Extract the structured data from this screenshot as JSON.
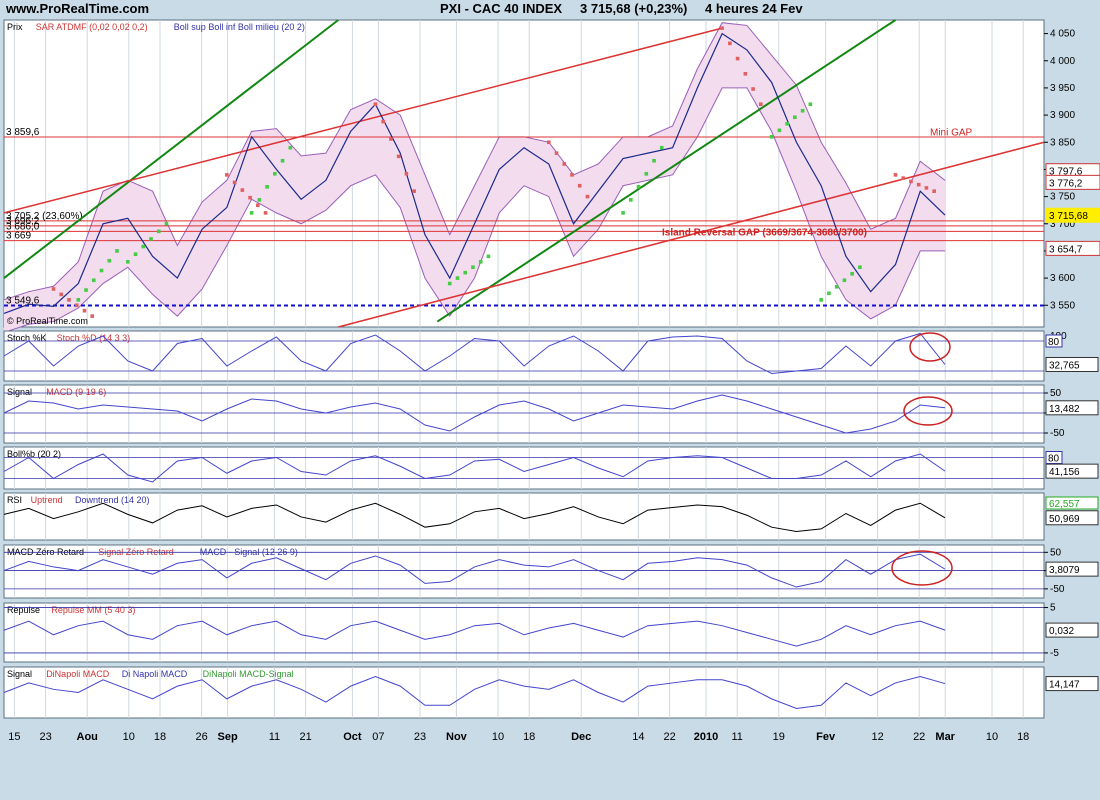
{
  "header": {
    "site": "www.ProRealTime.com",
    "instrument": "PXI - CAC 40 INDEX",
    "last": "3 715,68 (+0,23%)",
    "period": "4 heures  24 Fev"
  },
  "colors": {
    "background": "#c8dbe6",
    "panel": "#ffffff",
    "bollinger_fill": "#f2dcee",
    "bollinger_line": "#9a5fb8",
    "sar_red": "#e06060",
    "sar_green": "#44cc44",
    "trend_red": "#dd3333",
    "trend_green": "#118811",
    "support_blue": "#1010cc"
  },
  "chart_data": [
    {
      "type": "line",
      "id": "price",
      "legend": [
        "Prix",
        "SAR ATDMF (0,02 0,02 0,2)",
        "Boll sup Boll inf Boll milieu (20 2)"
      ],
      "watermark": "© ProRealTime.com",
      "ylim": [
        3510,
        4075
      ],
      "yticks": [
        3550,
        3600,
        3650,
        3700,
        3750,
        3800,
        3850,
        3900,
        3950,
        4000,
        4050
      ],
      "ytick_labels": [
        "3 550",
        "3 600",
        "3 650",
        "3 700",
        "3 750",
        "3 800",
        "3 850",
        "3 900",
        "3 950",
        "4 000",
        "4 050"
      ],
      "left_levels": [
        {
          "value": 3859.6,
          "label": "3 859,6"
        },
        {
          "value": 3549.6,
          "label": "3 549,6"
        },
        {
          "value": 3705.2,
          "label": "3 705,2 (23,60%)"
        },
        {
          "value": 3696.2,
          "label": "3 696,2"
        },
        {
          "value": 3686.0,
          "label": "3 686,0"
        },
        {
          "value": 3669.0,
          "label": "3 669"
        }
      ],
      "right_badges": [
        {
          "value": 3797.6,
          "label": "3 797,6",
          "color": "#cc3333"
        },
        {
          "value": 3776.2,
          "label": "3 776,2",
          "color": "#cc3333"
        },
        {
          "value": 3715.68,
          "label": "3 715,68",
          "color": "#ffee00"
        },
        {
          "value": 3654.7,
          "label": "3 654,7",
          "color": "#cc3333"
        }
      ],
      "annotations": [
        "Mini GAP",
        "Island Reversal GAP (3669/3674-3686/3700)"
      ],
      "x": [
        0,
        8,
        16,
        24,
        32,
        40,
        48,
        56,
        64,
        72,
        80,
        88,
        96,
        104,
        112,
        120,
        128,
        136,
        144,
        152,
        160,
        168,
        176,
        184,
        192,
        200,
        208,
        216,
        224,
        232,
        240,
        248,
        256,
        264,
        272,
        280,
        288,
        296,
        304
      ],
      "close": [
        3535,
        3552,
        3548,
        3590,
        3700,
        3710,
        3640,
        3600,
        3690,
        3730,
        3860,
        3800,
        3745,
        3780,
        3870,
        3920,
        3830,
        3680,
        3600,
        3700,
        3800,
        3840,
        3810,
        3700,
        3760,
        3820,
        3830,
        3840,
        3950,
        4050,
        4020,
        3960,
        3850,
        3770,
        3640,
        3575,
        3625,
        3760,
        3716
      ],
      "series": [
        {
          "name": "Boll sup",
          "values": [
            3560,
            3575,
            3585,
            3630,
            3760,
            3780,
            3760,
            3660,
            3740,
            3780,
            3870,
            3875,
            3825,
            3830,
            3910,
            3930,
            3900,
            3790,
            3680,
            3770,
            3860,
            3860,
            3850,
            3790,
            3810,
            3860,
            3860,
            3880,
            3985,
            4070,
            4065,
            4010,
            3955,
            3850,
            3775,
            3690,
            3710,
            3815,
            3780
          ]
        },
        {
          "name": "Boll inf",
          "values": [
            3500,
            3515,
            3520,
            3545,
            3590,
            3620,
            3570,
            3530,
            3580,
            3660,
            3745,
            3720,
            3700,
            3725,
            3770,
            3790,
            3730,
            3600,
            3530,
            3600,
            3720,
            3770,
            3750,
            3640,
            3690,
            3770,
            3780,
            3790,
            3860,
            3950,
            3950,
            3870,
            3760,
            3640,
            3560,
            3525,
            3550,
            3650,
            3650
          ]
        }
      ],
      "sar": {
        "red_segments": [
          [
            16,
            3580,
            3530
          ],
          [
            72,
            3790,
            3720
          ],
          [
            120,
            3920,
            3760
          ],
          [
            176,
            3850,
            3750
          ],
          [
            232,
            4060,
            3920
          ],
          [
            288,
            3790,
            3760
          ]
        ],
        "green_segments": [
          [
            24,
            3560,
            3650
          ],
          [
            40,
            3630,
            3700
          ],
          [
            80,
            3720,
            3840
          ],
          [
            144,
            3590,
            3640
          ],
          [
            200,
            3720,
            3840
          ],
          [
            248,
            3860,
            3920
          ],
          [
            264,
            3560,
            3620
          ]
        ]
      }
    },
    {
      "type": "line",
      "id": "stochastic",
      "legend": [
        "Stoch %K",
        "Stoch %D (14 3 3)"
      ],
      "ylim": [
        0,
        100
      ],
      "top_label": "100",
      "levels": [
        {
          "value": 80,
          "label": "80"
        },
        {
          "value": 20
        }
      ],
      "last_label": "32,765",
      "values": [
        50,
        80,
        30,
        70,
        90,
        40,
        20,
        75,
        85,
        30,
        60,
        88,
        40,
        20,
        75,
        92,
        60,
        20,
        50,
        85,
        80,
        30,
        70,
        90,
        60,
        20,
        80,
        88,
        90,
        85,
        40,
        15,
        20,
        25,
        70,
        30,
        80,
        95,
        33
      ]
    },
    {
      "type": "line",
      "id": "macd",
      "legend": [
        "Signal",
        "MACD (9 19 6)"
      ],
      "ylim": [
        -75,
        70
      ],
      "yticks": [
        50,
        0,
        -50
      ],
      "ytick_labels": [
        "50",
        "",
        "-50"
      ],
      "last_label": "13,482",
      "values": [
        0,
        30,
        25,
        10,
        20,
        15,
        10,
        5,
        -20,
        10,
        35,
        30,
        10,
        0,
        15,
        25,
        10,
        -30,
        -45,
        -10,
        20,
        30,
        10,
        -20,
        0,
        20,
        15,
        10,
        30,
        45,
        30,
        10,
        -10,
        -30,
        -50,
        -40,
        -20,
        20,
        13
      ]
    },
    {
      "type": "line",
      "id": "bollinger-pct",
      "legend": [
        "Boll%b (20 2)"
      ],
      "ylim": [
        -10,
        110
      ],
      "levels": [
        {
          "value": 80,
          "label": "80"
        },
        {
          "value": 20
        }
      ],
      "last_label": "41,156",
      "values": [
        40,
        80,
        20,
        60,
        90,
        30,
        10,
        70,
        80,
        35,
        70,
        80,
        40,
        30,
        70,
        85,
        55,
        20,
        30,
        70,
        75,
        40,
        60,
        80,
        50,
        25,
        70,
        80,
        85,
        80,
        50,
        20,
        20,
        30,
        70,
        25,
        70,
        90,
        41
      ]
    },
    {
      "type": "line",
      "id": "rsi",
      "legend": [
        "RSI",
        "Uptrend",
        "Downtrend (14 20)"
      ],
      "ylim": [
        25,
        80
      ],
      "last_label": "50,969",
      "second_label": "62,557",
      "values": [
        55,
        62,
        50,
        58,
        68,
        55,
        45,
        60,
        65,
        52,
        62,
        66,
        52,
        46,
        60,
        68,
        55,
        40,
        44,
        58,
        62,
        50,
        56,
        64,
        52,
        44,
        60,
        63,
        66,
        64,
        54,
        40,
        35,
        38,
        56,
        42,
        60,
        68,
        51
      ]
    },
    {
      "type": "line",
      "id": "macd-zero-lag",
      "legend": [
        "MACD Zéro Retard",
        "Signal Zéro Retard",
        "MACD - Signal (12 26 9)"
      ],
      "ylim": [
        -75,
        70
      ],
      "yticks": [
        50,
        0,
        -50
      ],
      "ytick_labels": [
        "50",
        "",
        "-50"
      ],
      "last_label": "3,8079",
      "values": [
        0,
        25,
        10,
        0,
        30,
        10,
        -10,
        20,
        30,
        -20,
        20,
        35,
        5,
        -25,
        20,
        40,
        15,
        -35,
        -30,
        10,
        30,
        15,
        10,
        30,
        0,
        -25,
        20,
        25,
        35,
        30,
        15,
        -20,
        -45,
        -30,
        30,
        -10,
        30,
        45,
        4
      ]
    },
    {
      "type": "line",
      "id": "repulse",
      "legend": [
        "Repulse",
        "Repulse MM (5 40 3)"
      ],
      "ylim": [
        -7,
        6
      ],
      "yticks": [
        5,
        -5
      ],
      "ytick_labels": [
        "5",
        "-5"
      ],
      "last_label": "0,032",
      "values": [
        0,
        2,
        -1,
        1,
        2,
        -1,
        -2,
        1,
        2,
        -1,
        1,
        2,
        -1,
        -2,
        1,
        2,
        0,
        -2,
        -1,
        1,
        1.5,
        -1,
        0.5,
        1.5,
        0,
        -1.5,
        1,
        1.5,
        2,
        1,
        -0.5,
        -2,
        -3.5,
        -2,
        1,
        -1,
        1,
        2,
        0.03
      ]
    },
    {
      "type": "line",
      "id": "dinapoli",
      "legend": [
        "Signal",
        "DiNapoli MACD",
        "Di Napoli MACD",
        "DiNapoli MACD-Signal"
      ],
      "ylim": [
        -40,
        40
      ],
      "last_label": "14,147",
      "values": [
        0,
        15,
        5,
        0,
        20,
        5,
        -10,
        10,
        20,
        -10,
        10,
        20,
        5,
        -15,
        10,
        25,
        10,
        -20,
        -20,
        5,
        20,
        10,
        5,
        20,
        0,
        -15,
        10,
        15,
        20,
        20,
        10,
        -10,
        -25,
        -20,
        15,
        -5,
        15,
        25,
        14
      ]
    }
  ],
  "x_axis": {
    "labels": [
      {
        "text": "15",
        "bold": false,
        "pos": 0.01
      },
      {
        "text": "23",
        "bold": false,
        "pos": 0.04
      },
      {
        "text": "Aou",
        "bold": true,
        "pos": 0.08
      },
      {
        "text": "10",
        "bold": false,
        "pos": 0.12
      },
      {
        "text": "18",
        "bold": false,
        "pos": 0.15
      },
      {
        "text": "26",
        "bold": false,
        "pos": 0.19
      },
      {
        "text": "Sep",
        "bold": true,
        "pos": 0.215
      },
      {
        "text": "11",
        "bold": false,
        "pos": 0.26
      },
      {
        "text": "21",
        "bold": false,
        "pos": 0.29
      },
      {
        "text": "Oct",
        "bold": true,
        "pos": 0.335
      },
      {
        "text": "07",
        "bold": false,
        "pos": 0.36
      },
      {
        "text": "23",
        "bold": false,
        "pos": 0.4
      },
      {
        "text": "Nov",
        "bold": true,
        "pos": 0.435
      },
      {
        "text": "10",
        "bold": false,
        "pos": 0.475
      },
      {
        "text": "18",
        "bold": false,
        "pos": 0.505
      },
      {
        "text": "Dec",
        "bold": true,
        "pos": 0.555
      },
      {
        "text": "14",
        "bold": false,
        "pos": 0.61
      },
      {
        "text": "22",
        "bold": false,
        "pos": 0.64
      },
      {
        "text": "2010",
        "bold": true,
        "pos": 0.675
      },
      {
        "text": "11",
        "bold": false,
        "pos": 0.705
      },
      {
        "text": "19",
        "bold": false,
        "pos": 0.745
      },
      {
        "text": "Fev",
        "bold": true,
        "pos": 0.79
      },
      {
        "text": "12",
        "bold": false,
        "pos": 0.84
      },
      {
        "text": "22",
        "bold": false,
        "pos": 0.88
      },
      {
        "text": "Mar",
        "bold": true,
        "pos": 0.905
      },
      {
        "text": "10",
        "bold": false,
        "pos": 0.95
      },
      {
        "text": "18",
        "bold": false,
        "pos": 0.98
      }
    ]
  }
}
